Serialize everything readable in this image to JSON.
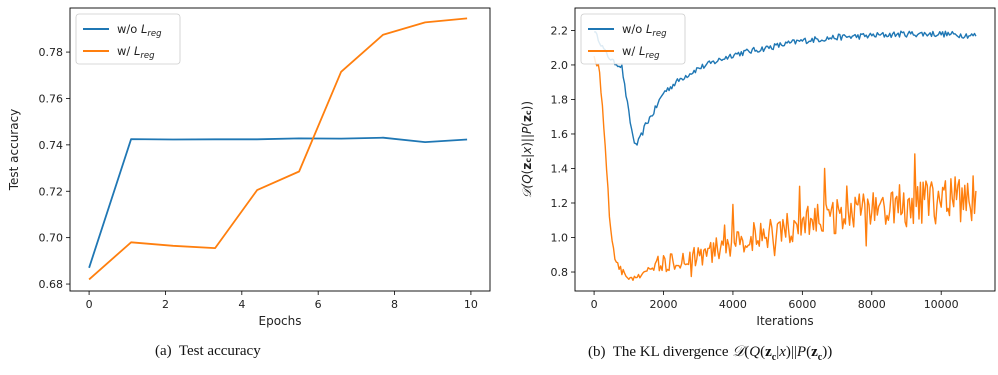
{
  "chart_data": [
    {
      "type": "line",
      "xlabel": "Epochs",
      "ylabel": "Test accuracy",
      "xlim": [
        -0.5,
        10.5
      ],
      "ylim": [
        0.677,
        0.799
      ],
      "xticks": [
        0,
        2,
        4,
        6,
        8,
        10
      ],
      "yticks": [
        0.68,
        0.7,
        0.72,
        0.74,
        0.76,
        0.78
      ],
      "ytick_labels": [
        "0.68",
        "0.70",
        "0.72",
        "0.74",
        "0.76",
        "0.78"
      ],
      "legend": "top-left",
      "grid": false,
      "series": [
        {
          "name": "w/o L_reg",
          "color": "#1f77b4",
          "x": [
            0,
            1.1,
            2.2,
            3.3,
            4.4,
            5.5,
            6.6,
            7.7,
            8.8,
            9.9
          ],
          "y": [
            0.687,
            0.7425,
            0.7423,
            0.7424,
            0.7424,
            0.7428,
            0.7427,
            0.7431,
            0.7412,
            0.7423
          ]
        },
        {
          "name": "w/ L_reg",
          "color": "#ff7f0e",
          "x": [
            0,
            1.1,
            2.2,
            3.3,
            4.4,
            5.5,
            6.6,
            7.7,
            8.8,
            9.9
          ],
          "y": [
            0.682,
            0.698,
            0.6965,
            0.6955,
            0.7205,
            0.7285,
            0.7715,
            0.7875,
            0.7928,
            0.7945
          ]
        }
      ]
    },
    {
      "type": "line",
      "xlabel": "Iterations",
      "ylabel": "D(Q(z_c|x)||P(z_c))",
      "xlim": [
        -550,
        11550
      ],
      "ylim": [
        0.69,
        2.33
      ],
      "xticks": [
        0,
        2000,
        4000,
        6000,
        8000,
        10000
      ],
      "yticks": [
        0.8,
        1.0,
        1.2,
        1.4,
        1.6,
        1.8,
        2.0,
        2.2
      ],
      "ytick_labels": [
        "0.8",
        "1.0",
        "1.2",
        "1.4",
        "1.6",
        "1.8",
        "2.0",
        "2.2"
      ],
      "legend": "top-left",
      "grid": false,
      "series": [
        {
          "name": "w/o L_reg",
          "color": "#1f77b4",
          "x": [
            0,
            200,
            400,
            600,
            800,
            1000,
            1100,
            1200,
            1300,
            1500,
            1700,
            2000,
            2500,
            3000,
            3500,
            4000,
            4500,
            5000,
            5500,
            6000,
            7000,
            8000,
            9000,
            10000,
            11000
          ],
          "y": [
            2.2,
            2.12,
            2.05,
            2.01,
            1.99,
            1.72,
            1.6,
            1.53,
            1.56,
            1.66,
            1.72,
            1.84,
            1.92,
            1.98,
            2.02,
            2.06,
            2.08,
            2.1,
            2.12,
            2.14,
            2.16,
            2.17,
            2.18,
            2.18,
            2.17
          ]
        },
        {
          "name": "w/ L_reg",
          "color": "#ff7f0e",
          "x": [
            0,
            150,
            300,
            450,
            600,
            800,
            1000,
            1200,
            1400,
            1600,
            2000,
            2500,
            3000,
            3500,
            4000,
            4500,
            5000,
            5500,
            6000,
            6500,
            7000,
            7500,
            8000,
            8500,
            9000,
            9500,
            10000,
            10500,
            11000
          ],
          "y": [
            2.05,
            1.98,
            1.6,
            1.1,
            0.88,
            0.8,
            0.77,
            0.76,
            0.78,
            0.82,
            0.85,
            0.88,
            0.9,
            0.93,
            0.96,
            1.0,
            1.02,
            1.05,
            1.08,
            1.1,
            1.12,
            1.14,
            1.15,
            1.17,
            1.18,
            1.2,
            1.21,
            1.22,
            1.23
          ]
        }
      ]
    }
  ],
  "captions": {
    "a": "(a)  Test accuracy",
    "b": "(b)  The KL divergence D(Q(z_c|x)||P(z_c))"
  }
}
